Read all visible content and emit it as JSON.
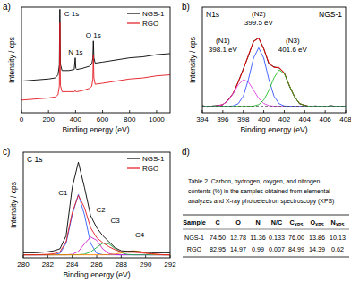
{
  "chart_data": [
    {
      "type": "line",
      "title": "a)",
      "xlabel": "Binding energy (eV)",
      "ylabel": "Intensity / cps",
      "x": [
        0,
        100,
        200,
        250,
        270,
        280,
        284,
        288,
        300,
        350,
        390,
        398,
        402,
        410,
        450,
        500,
        520,
        528,
        532,
        536,
        545,
        600,
        700,
        800,
        900,
        1000,
        1100
      ],
      "series": [
        {
          "name": "NGS-1",
          "color": "#000000",
          "values": [
            30,
            31,
            32,
            33,
            36,
            45,
            98,
            46,
            40,
            40,
            41,
            52,
            42,
            41,
            42,
            44,
            46,
            52,
            68,
            52,
            47,
            48,
            50,
            52,
            53,
            55,
            56
          ]
        },
        {
          "name": "RGO",
          "color": "#e3161e",
          "values": [
            12,
            13,
            14,
            15,
            17,
            25,
            85,
            26,
            20,
            20,
            20,
            21,
            20,
            20,
            21,
            23,
            25,
            32,
            55,
            33,
            27,
            28,
            30,
            32,
            33,
            35,
            36
          ]
        }
      ],
      "xlim": [
        0,
        1100
      ],
      "xticks": [
        0,
        200,
        400,
        600,
        800,
        1000
      ],
      "ylim": [
        0,
        100
      ],
      "tick_labels": "x",
      "legend": "upper right",
      "grid": false,
      "annotations": [
        {
          "text": "C 1s",
          "x": 284
        },
        {
          "text": "N 1s",
          "x": 400
        },
        {
          "text": "O 1s",
          "x": 532
        }
      ]
    },
    {
      "type": "line",
      "title": "b)",
      "subtitle": "N1s",
      "xlabel": "Binding energy (eV)",
      "ylabel": "Intensity / cps",
      "x": [
        394,
        394.5,
        395,
        395.5,
        396,
        396.5,
        397,
        397.5,
        398,
        398.5,
        399,
        399.5,
        400,
        400.5,
        401,
        401.5,
        402,
        402.5,
        403,
        403.5,
        404,
        404.5,
        405,
        405.5,
        406,
        406.5,
        407,
        407.5,
        408
      ],
      "series": [
        {
          "color": "#000000",
          "values": [
            0.09,
            0.07,
            0.085,
            0.09,
            0.1,
            0.155,
            0.235,
            0.38,
            0.54,
            0.7,
            0.88,
            0.92,
            0.79,
            0.6,
            0.565,
            0.55,
            0.495,
            0.33,
            0.2,
            0.11,
            0.095,
            0.075,
            0.085,
            0.08,
            0.07,
            0.09,
            0.08,
            0.075,
            0.085
          ]
        },
        {
          "color": "#ff0000",
          "values": [
            0.08,
            0.08,
            0.081,
            0.085,
            0.102,
            0.149,
            0.241,
            0.376,
            0.532,
            0.71,
            0.876,
            0.919,
            0.785,
            0.614,
            0.557,
            0.559,
            0.488,
            0.338,
            0.196,
            0.117,
            0.088,
            0.081,
            0.08,
            0.08,
            0.08,
            0.08,
            0.08,
            0.08,
            0.08
          ]
        },
        {
          "color": "#e040e0",
          "values": [
            0.08,
            0.08,
            0.081,
            0.085,
            0.102,
            0.148,
            0.236,
            0.344,
            0.408,
            0.379,
            0.28,
            0.178,
            0.116,
            0.089,
            0.082,
            0.08,
            0.08,
            0.08,
            0.08,
            0.08,
            0.08,
            0.08,
            0.08,
            0.08,
            0.08,
            0.08,
            0.08,
            0.08,
            0.08
          ]
        },
        {
          "color": "#3355ff",
          "values": [
            0.08,
            0.08,
            0.08,
            0.08,
            0.08,
            0.081,
            0.085,
            0.112,
            0.204,
            0.41,
            0.672,
            0.8,
            0.672,
            0.41,
            0.204,
            0.112,
            0.085,
            0.081,
            0.08,
            0.08,
            0.08,
            0.08,
            0.08,
            0.08,
            0.08,
            0.08,
            0.08,
            0.08,
            0.08
          ]
        },
        {
          "color": "#22bb22",
          "values": [
            0.08,
            0.08,
            0.08,
            0.08,
            0.08,
            0.08,
            0.08,
            0.08,
            0.08,
            0.081,
            0.084,
            0.101,
            0.157,
            0.275,
            0.431,
            0.527,
            0.483,
            0.337,
            0.196,
            0.117,
            0.088,
            0.081,
            0.08,
            0.08,
            0.08,
            0.08,
            0.08,
            0.08,
            0.08
          ]
        },
        {
          "color": "#444444",
          "line_style": "dashed",
          "values": [
            0.08,
            0.08,
            0.08,
            0.08,
            0.08,
            0.08,
            0.08,
            0.08,
            0.08,
            0.08,
            0.08,
            0.08,
            0.08,
            0.08,
            0.08,
            0.08,
            0.08,
            0.08,
            0.08,
            0.08,
            0.08,
            0.08,
            0.08,
            0.08,
            0.08,
            0.08,
            0.08,
            0.08,
            0.08
          ]
        }
      ],
      "xlim": [
        394,
        408
      ],
      "xticks": [
        394,
        396,
        398,
        400,
        402,
        404,
        406,
        408
      ],
      "ylim": [
        0,
        1.3
      ],
      "tick_labels": "x",
      "grid": false,
      "annotations": [
        {
          "text": "NGS-1"
        },
        {
          "label": "(N1)",
          "text": "398.1 eV",
          "x": 398.1
        },
        {
          "label": "(N2)",
          "text": "399.5 eV",
          "x": 399.5
        },
        {
          "label": "(N3)",
          "text": "401.6 eV",
          "x": 401.6
        }
      ]
    },
    {
      "type": "line",
      "title": "c)",
      "subtitle": "C 1s",
      "xlabel": "Binding energy (eV)",
      "ylabel": "Intensity / cps",
      "x": [
        280,
        280.5,
        281,
        281.5,
        282,
        282.5,
        283,
        283.5,
        284,
        284.5,
        285,
        285.5,
        286,
        286.5,
        287,
        287.5,
        288,
        288.5,
        289,
        289.5,
        290,
        290.5,
        291,
        291.5,
        292
      ],
      "series": [
        {
          "color": "#3060ff",
          "values": [
            0.03,
            0.03,
            0.03,
            0.03,
            0.03,
            0.031,
            0.045,
            0.145,
            0.427,
            0.63,
            0.427,
            0.145,
            0.045,
            0.031,
            0.03,
            0.03,
            0.03,
            0.03,
            0.03,
            0.03,
            0.03,
            0.03,
            0.03,
            0.03,
            0.03
          ]
        },
        {
          "color": "#d020d0",
          "values": [
            0.03,
            0.03,
            0.03,
            0.03,
            0.03,
            0.03,
            0.03,
            0.03,
            0.035,
            0.063,
            0.139,
            0.207,
            0.174,
            0.088,
            0.042,
            0.031,
            0.03,
            0.03,
            0.03,
            0.03,
            0.03,
            0.03,
            0.03,
            0.03,
            0.03
          ]
        },
        {
          "color": "#20b040",
          "values": [
            0.03,
            0.03,
            0.03,
            0.03,
            0.03,
            0.03,
            0.03,
            0.03,
            0.03,
            0.031,
            0.036,
            0.058,
            0.103,
            0.145,
            0.139,
            0.092,
            0.051,
            0.034,
            0.03,
            0.03,
            0.03,
            0.03,
            0.03,
            0.03,
            0.03
          ]
        },
        {
          "color": "#ff8000",
          "values": [
            0.03,
            0.03,
            0.03,
            0.03,
            0.03,
            0.03,
            0.03,
            0.03,
            0.03,
            0.03,
            0.03,
            0.03,
            0.03,
            0.03,
            0.032,
            0.037,
            0.048,
            0.063,
            0.07,
            0.063,
            0.048,
            0.037,
            0.032,
            0.03,
            0.03
          ]
        },
        {
          "name": "NGS-1",
          "color": "#000000",
          "values": [
            0.05,
            0.05,
            0.05,
            0.055,
            0.06,
            0.07,
            0.09,
            0.22,
            0.7,
            0.95,
            0.7,
            0.42,
            0.3,
            0.22,
            0.16,
            0.1,
            0.07,
            0.065,
            0.065,
            0.06,
            0.055,
            0.05,
            0.05,
            0.05,
            0.05
          ]
        },
        {
          "name": "RGO",
          "color": "#e3161e",
          "values": [
            0.03,
            0.03,
            0.03,
            0.032,
            0.035,
            0.04,
            0.06,
            0.16,
            0.45,
            0.62,
            0.5,
            0.3,
            0.2,
            0.15,
            0.11,
            0.08,
            0.06,
            0.055,
            0.055,
            0.05,
            0.045,
            0.04,
            0.035,
            0.03,
            0.03
          ]
        }
      ],
      "xlim": [
        280,
        292
      ],
      "xticks": [
        280,
        282,
        284,
        286,
        288,
        290,
        292
      ],
      "ylim": [
        0,
        1.05
      ],
      "tick_labels": "x",
      "legend": "upper right",
      "grid": false,
      "annotations": [
        {
          "text": "C1",
          "x": 284.5
        },
        {
          "text": "C2",
          "x": 285.6
        },
        {
          "text": "C3",
          "x": 286.7
        },
        {
          "text": "C4",
          "x": 289
        }
      ]
    }
  ],
  "table": {
    "label": "d)",
    "caption": [
      "Table 2. Carbon, hydrogen, oxygen, and nitrogen",
      "contents (%) in the samples obtained from elemental",
      "analyzes and X-ray photoelectron spectroscopy (XPS)"
    ],
    "header": [
      "Sample",
      "C",
      "O",
      "N",
      "N/C",
      [
        "C",
        "XPS"
      ],
      [
        "O",
        "XPS"
      ],
      [
        "N",
        "XPS"
      ]
    ],
    "rows": [
      [
        "NGS-1",
        "74.50",
        "12.78",
        "11.36",
        "0.133",
        "76.00",
        "13.86",
        "10.13"
      ],
      [
        "RGO",
        "82.95",
        "14.97",
        "0.99",
        "0.007",
        "84.99",
        "14.39",
        "0.62"
      ]
    ]
  }
}
